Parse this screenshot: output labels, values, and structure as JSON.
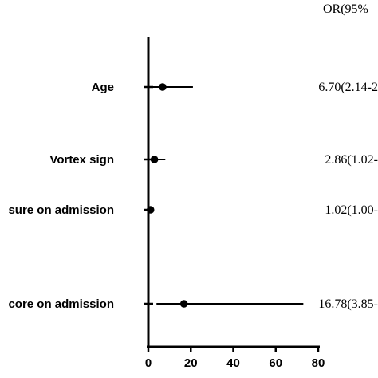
{
  "chart_data": {
    "type": "forest",
    "column_header": "OR(95%",
    "rows": [
      {
        "label": "Age",
        "or": 6.7,
        "ci": [
          2.14,
          21.0
        ],
        "or_text": "6.70(2.14-2"
      },
      {
        "label": "Vortex sign",
        "or": 2.86,
        "ci": [
          1.02,
          8.0
        ],
        "or_text": "2.86(1.02-"
      },
      {
        "label": "sure on admission",
        "or": 1.02,
        "ci": [
          1.0,
          1.05
        ],
        "or_text": "1.02(1.00-"
      },
      {
        "label": "core on admission",
        "or": 16.78,
        "ci": [
          3.85,
          73.0
        ],
        "or_text": "16.78(3.85-"
      }
    ],
    "xticks": [
      "0",
      "20",
      "40",
      "60",
      "80"
    ],
    "xlim": [
      0,
      80
    ],
    "reference_line": 0,
    "colors": {
      "marks": "#000000"
    }
  }
}
